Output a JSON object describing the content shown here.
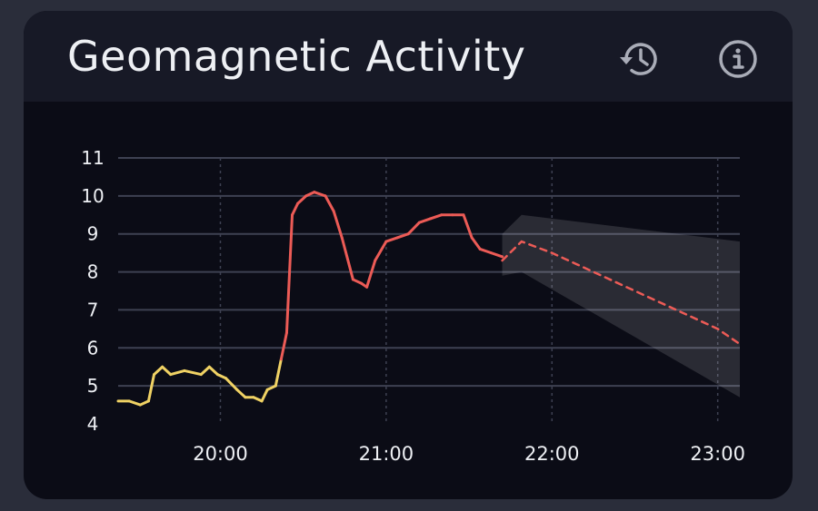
{
  "widget": {
    "title": "Geomagnetic Activity",
    "icons": {
      "history": "history-icon",
      "info": "info-icon"
    }
  },
  "colors": {
    "low": "#f0d264",
    "high": "#ec5b56",
    "forecast": "#ec5b56",
    "band": "#ffffff",
    "grid": "#3e4152"
  },
  "chart_data": {
    "type": "line",
    "title": "",
    "xlabel": "",
    "ylabel": "",
    "xlim": [
      "19:23",
      "23:08"
    ],
    "ylim": [
      4,
      11
    ],
    "y_ticks": [
      "4",
      "5",
      "6",
      "7",
      "8",
      "9",
      "10",
      "11"
    ],
    "x_ticks": [
      "20:00",
      "21:00",
      "22:00",
      "23:00"
    ],
    "grid": true,
    "observed": [
      [
        "19:23",
        4.6
      ],
      [
        "19:27",
        4.6
      ],
      [
        "19:31",
        4.5
      ],
      [
        "19:34",
        4.6
      ],
      [
        "19:36",
        5.3
      ],
      [
        "19:39",
        5.5
      ],
      [
        "19:42",
        5.3
      ],
      [
        "19:47",
        5.4
      ],
      [
        "19:53",
        5.3
      ],
      [
        "19:56",
        5.5
      ],
      [
        "19:59",
        5.3
      ],
      [
        "20:02",
        5.2
      ],
      [
        "20:06",
        4.9
      ],
      [
        "20:09",
        4.7
      ],
      [
        "20:12",
        4.7
      ],
      [
        "20:15",
        4.6
      ],
      [
        "20:17",
        4.9
      ],
      [
        "20:20",
        5.0
      ],
      [
        "20:22",
        5.7
      ],
      [
        "20:24",
        6.4
      ],
      [
        "20:26",
        9.5
      ],
      [
        "20:28",
        9.8
      ],
      [
        "20:31",
        10.0
      ],
      [
        "20:34",
        10.1
      ],
      [
        "20:38",
        10.0
      ],
      [
        "20:41",
        9.6
      ],
      [
        "20:44",
        8.9
      ],
      [
        "20:48",
        7.8
      ],
      [
        "20:51",
        7.7
      ],
      [
        "20:53",
        7.6
      ],
      [
        "20:56",
        8.3
      ],
      [
        "21:00",
        8.8
      ],
      [
        "21:04",
        8.9
      ],
      [
        "21:08",
        9.0
      ],
      [
        "21:12",
        9.3
      ],
      [
        "21:16",
        9.4
      ],
      [
        "21:20",
        9.5
      ],
      [
        "21:24",
        9.5
      ],
      [
        "21:28",
        9.5
      ],
      [
        "21:31",
        8.9
      ],
      [
        "21:34",
        8.6
      ],
      [
        "21:38",
        8.5
      ],
      [
        "21:42",
        8.4
      ]
    ],
    "forecast": [
      [
        "21:42",
        8.3
      ],
      [
        "21:49",
        8.8
      ],
      [
        "22:00",
        8.5
      ],
      [
        "22:30",
        7.5
      ],
      [
        "23:00",
        6.5
      ],
      [
        "23:08",
        6.1
      ]
    ],
    "forecast_band": {
      "upper": [
        [
          "21:42",
          9.0
        ],
        [
          "21:49",
          9.5
        ],
        [
          "23:08",
          8.8
        ]
      ],
      "lower": [
        [
          "21:42",
          7.9
        ],
        [
          "21:49",
          8.0
        ],
        [
          "23:08",
          4.7
        ]
      ]
    },
    "color_threshold": 6
  }
}
